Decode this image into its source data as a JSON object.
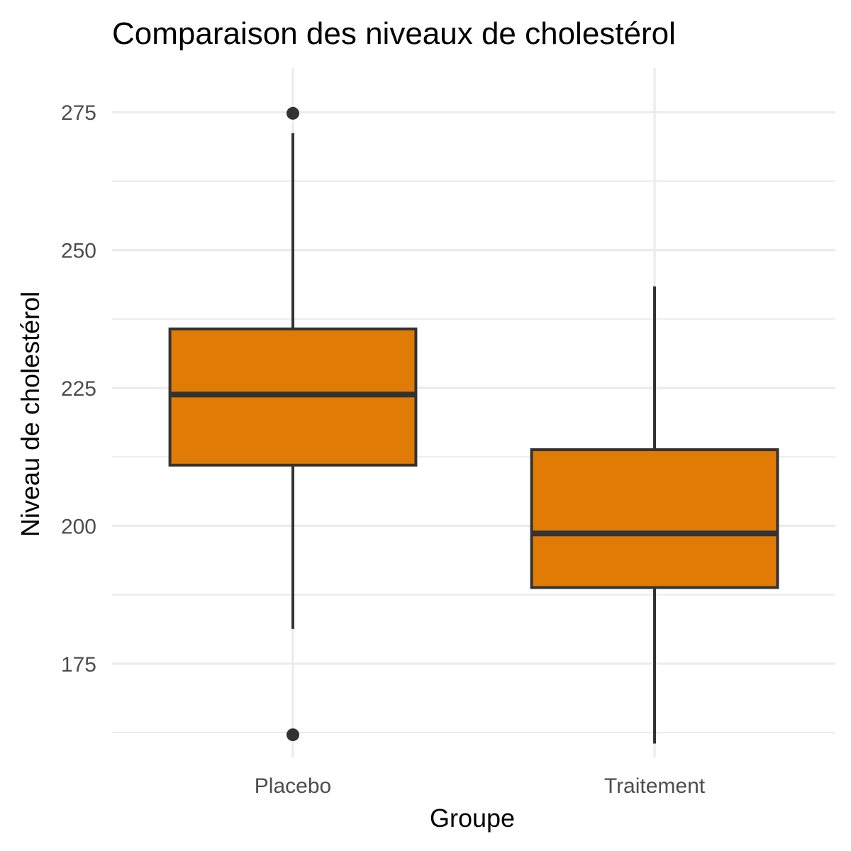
{
  "chart_data": {
    "type": "boxplot",
    "title": "Comparaison des niveaux de cholestérol",
    "xlabel": "Groupe",
    "ylabel": "Niveau de cholestérol",
    "categories": [
      "Placebo",
      "Traitement"
    ],
    "ylim": [
      158,
      283
    ],
    "yticks": [
      175,
      200,
      225,
      250,
      275
    ],
    "ytick_labels": [
      "175",
      "200",
      "225",
      "250",
      "275"
    ],
    "grid": true,
    "legend": "none",
    "boxes": [
      {
        "category": "Placebo",
        "whisker_low": 181.3,
        "q1": 211.0,
        "median": 223.8,
        "q3": 235.7,
        "whisker_high": 271.2,
        "outliers": [
          274.8,
          162.1
        ]
      },
      {
        "category": "Traitement",
        "whisker_low": 160.5,
        "q1": 188.8,
        "median": 198.6,
        "q3": 213.8,
        "whisker_high": 243.4,
        "outliers": []
      }
    ],
    "colors": {
      "fill": "#e07b06",
      "stroke": "#333333",
      "grid": "#ebebeb",
      "background": "#ffffff"
    }
  }
}
